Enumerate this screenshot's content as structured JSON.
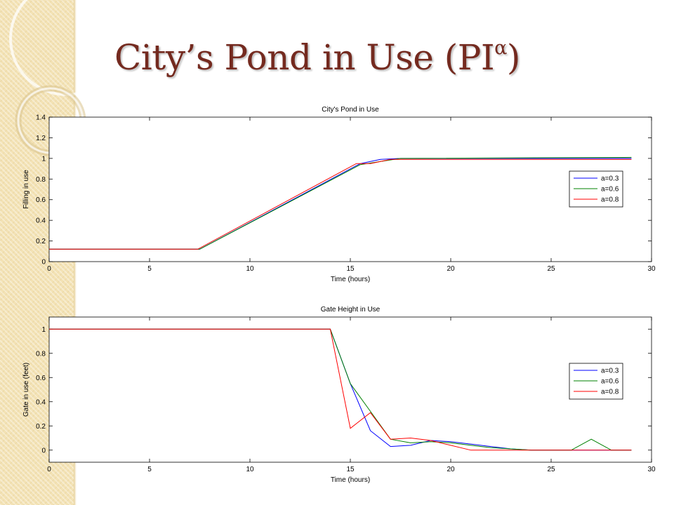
{
  "slide": {
    "title_main": "City’s Pond in Use (PI",
    "title_sup": "α",
    "title_end": ")"
  },
  "chart_data": [
    {
      "type": "line",
      "title": "City's Pond in Use",
      "xlabel": "Time (hours)",
      "ylabel": "Filling in use",
      "xlim": [
        0,
        30
      ],
      "ylim": [
        0,
        1.4
      ],
      "xticks": [
        0,
        5,
        10,
        15,
        20,
        25,
        30
      ],
      "yticks": [
        0,
        0.2,
        0.4,
        0.6,
        0.8,
        1,
        1.2,
        1.4
      ],
      "ytick_labels": [
        "0",
        "0.2",
        "0.4",
        "0.6",
        "0.8",
        "1",
        "1.2",
        "1.4"
      ],
      "grid": false,
      "legend_position": "right",
      "series": [
        {
          "name": "a=0.3",
          "color": "#0000ff",
          "x": [
            0,
            7.5,
            15.5,
            16.5,
            17.5,
            29
          ],
          "y": [
            0.12,
            0.12,
            0.95,
            0.99,
            1.0,
            1.0
          ]
        },
        {
          "name": "a=0.6",
          "color": "#008000",
          "x": [
            0,
            7.5,
            15.5,
            16.5,
            17.5,
            29
          ],
          "y": [
            0.12,
            0.12,
            0.94,
            0.97,
            1.0,
            1.01
          ]
        },
        {
          "name": "a=0.8",
          "color": "#ff0000",
          "x": [
            0,
            7.4,
            15.3,
            16.0,
            17.0,
            29
          ],
          "y": [
            0.12,
            0.12,
            0.95,
            0.95,
            0.99,
            0.99
          ]
        }
      ]
    },
    {
      "type": "line",
      "title": "Gate Height in Use",
      "xlabel": "Time (hours)",
      "ylabel": "Gate in use (feet)",
      "xlim": [
        0,
        30
      ],
      "ylim": [
        -0.1,
        1.1
      ],
      "xticks": [
        0,
        5,
        10,
        15,
        20,
        25,
        30
      ],
      "yticks": [
        0,
        0.2,
        0.4,
        0.6,
        0.8,
        1
      ],
      "ytick_labels": [
        "0",
        "0.2",
        "0.4",
        "0.6",
        "0.8",
        "1"
      ],
      "grid": false,
      "legend_position": "right",
      "series": [
        {
          "name": "a=0.3",
          "color": "#0000ff",
          "x": [
            0,
            14,
            15,
            16,
            17,
            18,
            19,
            20,
            21,
            22,
            23,
            24,
            25,
            26,
            27,
            28,
            29
          ],
          "y": [
            1,
            1,
            0.55,
            0.16,
            0.03,
            0.04,
            0.08,
            0.07,
            0.05,
            0.03,
            0.01,
            0,
            0,
            0,
            0,
            0,
            0
          ]
        },
        {
          "name": "a=0.6",
          "color": "#008000",
          "x": [
            0,
            14,
            15,
            16,
            17,
            18,
            19,
            20,
            21,
            22,
            23,
            24,
            25,
            26,
            27,
            28,
            29
          ],
          "y": [
            1,
            1,
            0.55,
            0.32,
            0.09,
            0.06,
            0.07,
            0.06,
            0.04,
            0.02,
            0.01,
            0,
            0,
            0,
            0.09,
            0,
            0
          ]
        },
        {
          "name": "a=0.8",
          "color": "#ff0000",
          "x": [
            0,
            14,
            15,
            16,
            17,
            18,
            19,
            20,
            21,
            22,
            23,
            24,
            25,
            26,
            27,
            28,
            29
          ],
          "y": [
            1,
            1,
            0.18,
            0.31,
            0.09,
            0.1,
            0.08,
            0.04,
            0,
            0,
            0,
            0,
            0,
            0,
            0,
            0,
            0
          ]
        }
      ]
    }
  ]
}
